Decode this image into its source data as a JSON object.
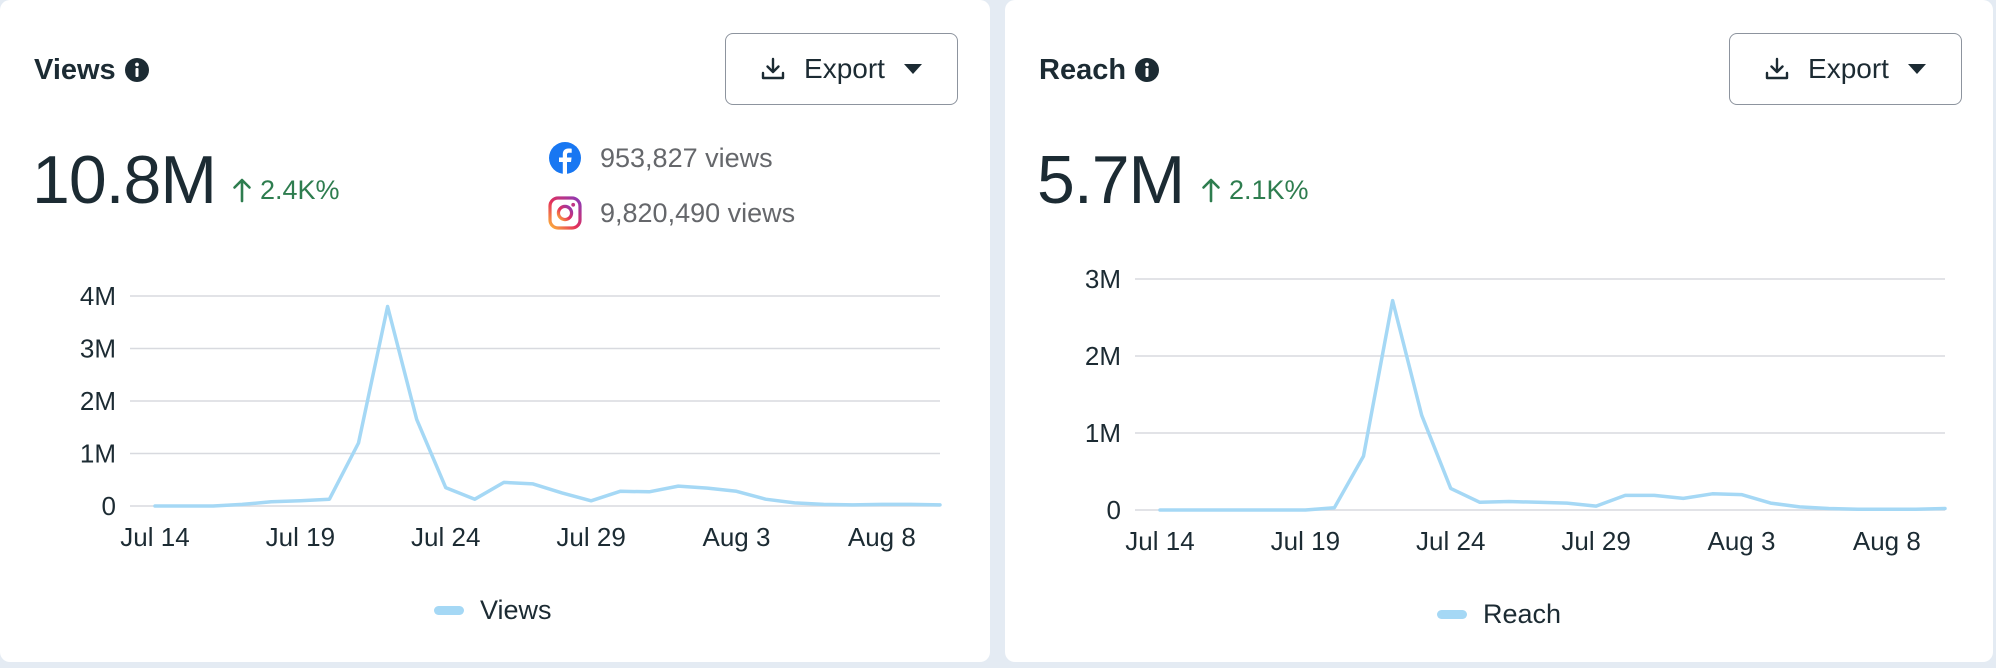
{
  "colors": {
    "line": "#a5d8f5",
    "grid": "#d8dadf",
    "positive": "#2e7d4f",
    "facebook": "#1877f2"
  },
  "views_card": {
    "title": "Views",
    "export_label": "Export",
    "total": "10.8M",
    "change": "2.4K%",
    "facebook_views": "953,827 views",
    "instagram_views": "9,820,490 views",
    "legend_label": "Views"
  },
  "reach_card": {
    "title": "Reach",
    "export_label": "Export",
    "total": "5.7M",
    "change": "2.1K%",
    "legend_label": "Reach"
  },
  "chart_data": [
    {
      "type": "line",
      "title": "",
      "xlabel": "",
      "ylabel": "",
      "x_tick_labels": [
        "Jul 14",
        "Jul 19",
        "Jul 24",
        "Jul 29",
        "Aug 3",
        "Aug 8"
      ],
      "y_tick_labels": [
        "0",
        "1M",
        "2M",
        "3M",
        "4M"
      ],
      "ylim": [
        0,
        4000000
      ],
      "grid": true,
      "legend_position": "bottom",
      "series": [
        {
          "name": "Views",
          "x": [
            "Jul 14",
            "Jul 15",
            "Jul 16",
            "Jul 17",
            "Jul 18",
            "Jul 19",
            "Jul 20",
            "Jul 21",
            "Jul 22",
            "Jul 23",
            "Jul 24",
            "Jul 25",
            "Jul 26",
            "Jul 27",
            "Jul 28",
            "Jul 29",
            "Jul 30",
            "Jul 31",
            "Aug 1",
            "Aug 2",
            "Aug 3",
            "Aug 4",
            "Aug 5",
            "Aug 6",
            "Aug 7",
            "Aug 8",
            "Aug 9",
            "Aug 10"
          ],
          "values": [
            0,
            0,
            0,
            30000,
            80000,
            100000,
            130000,
            1200000,
            3800000,
            1650000,
            350000,
            130000,
            450000,
            420000,
            250000,
            100000,
            280000,
            270000,
            380000,
            340000,
            280000,
            130000,
            60000,
            30000,
            20000,
            30000,
            30000,
            20000
          ]
        }
      ]
    },
    {
      "type": "line",
      "title": "",
      "xlabel": "",
      "ylabel": "",
      "x_tick_labels": [
        "Jul 14",
        "Jul 19",
        "Jul 24",
        "Jul 29",
        "Aug 3",
        "Aug 8"
      ],
      "y_tick_labels": [
        "0",
        "1M",
        "2M",
        "3M"
      ],
      "ylim": [
        0,
        3000000
      ],
      "grid": true,
      "legend_position": "bottom",
      "series": [
        {
          "name": "Reach",
          "x": [
            "Jul 14",
            "Jul 15",
            "Jul 16",
            "Jul 17",
            "Jul 18",
            "Jul 19",
            "Jul 20",
            "Jul 21",
            "Jul 22",
            "Jul 23",
            "Jul 24",
            "Jul 25",
            "Jul 26",
            "Jul 27",
            "Jul 28",
            "Jul 29",
            "Jul 30",
            "Jul 31",
            "Aug 1",
            "Aug 2",
            "Aug 3",
            "Aug 4",
            "Aug 5",
            "Aug 6",
            "Aug 7",
            "Aug 8",
            "Aug 9",
            "Aug 10"
          ],
          "values": [
            0,
            0,
            0,
            0,
            0,
            0,
            30000,
            700000,
            2720000,
            1230000,
            280000,
            100000,
            110000,
            100000,
            90000,
            50000,
            190000,
            190000,
            150000,
            210000,
            200000,
            90000,
            40000,
            20000,
            10000,
            10000,
            10000,
            20000
          ]
        }
      ]
    }
  ]
}
